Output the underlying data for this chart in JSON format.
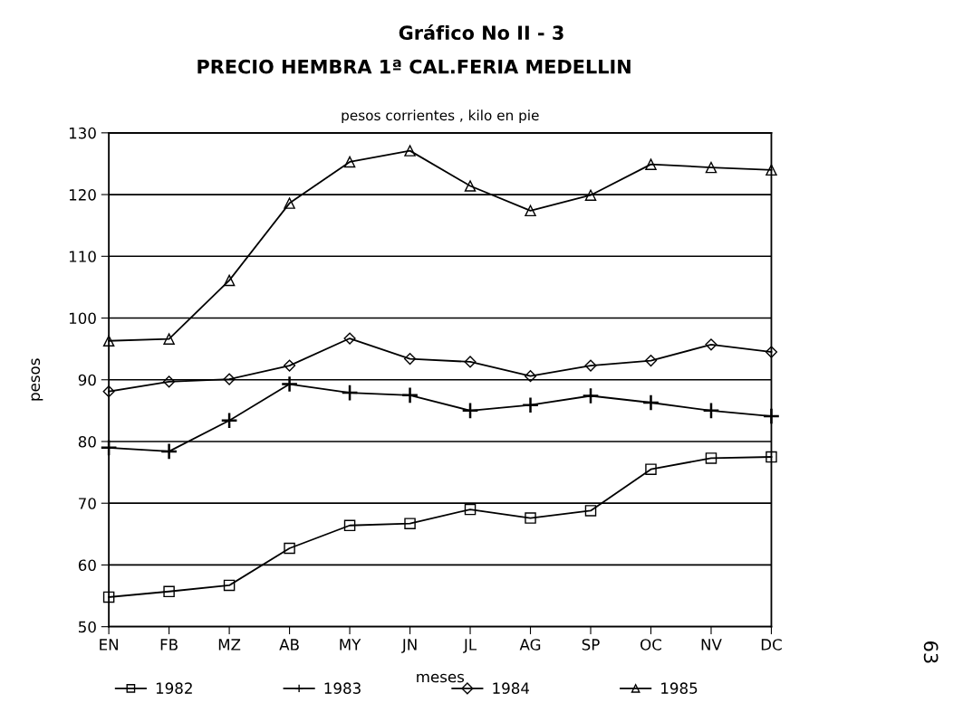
{
  "chart_data": {
    "type": "line",
    "title": "Gráfico No II - 3\nPRECIO HEMBRA 1ª CAL.FERIA MEDELLIN",
    "subtitle": "pesos corrientes , kilo en pie",
    "xlabel": "meses",
    "ylabel": "pesos",
    "categories": [
      "EN",
      "FB",
      "MZ",
      "AB",
      "MY",
      "JN",
      "JL",
      "AG",
      "SP",
      "OC",
      "NV",
      "DC"
    ],
    "series": [
      {
        "name": "1982",
        "color": "#000000",
        "marker": "square",
        "values": [
          54.8,
          55.7,
          56.7,
          62.7,
          66.4,
          66.7,
          69.0,
          67.6,
          68.8,
          75.5,
          77.3,
          77.5
        ]
      },
      {
        "name": "1983",
        "color": "#000000",
        "marker": "cross",
        "values": [
          79.0,
          78.4,
          83.4,
          89.3,
          87.9,
          87.5,
          85.0,
          85.9,
          87.4,
          86.3,
          85.0,
          84.1
        ]
      },
      {
        "name": "1984",
        "color": "#000000",
        "marker": "diamond",
        "values": [
          88.1,
          89.7,
          90.1,
          92.3,
          96.7,
          93.4,
          92.9,
          90.6,
          92.3,
          93.1,
          95.7,
          94.5
        ]
      },
      {
        "name": "1985",
        "color": "#000000",
        "marker": "triangle",
        "values": [
          96.3,
          96.6,
          106.1,
          118.6,
          125.3,
          127.1,
          121.4,
          117.4,
          119.9,
          124.9,
          124.4,
          124.0
        ]
      }
    ],
    "ylim": [
      50,
      130
    ],
    "yticks": [
      50,
      60,
      70,
      80,
      90,
      100,
      110,
      120,
      130
    ],
    "grid": "y",
    "legend": "bottom",
    "line_style": "solid",
    "annotations": [
      "63"
    ]
  }
}
